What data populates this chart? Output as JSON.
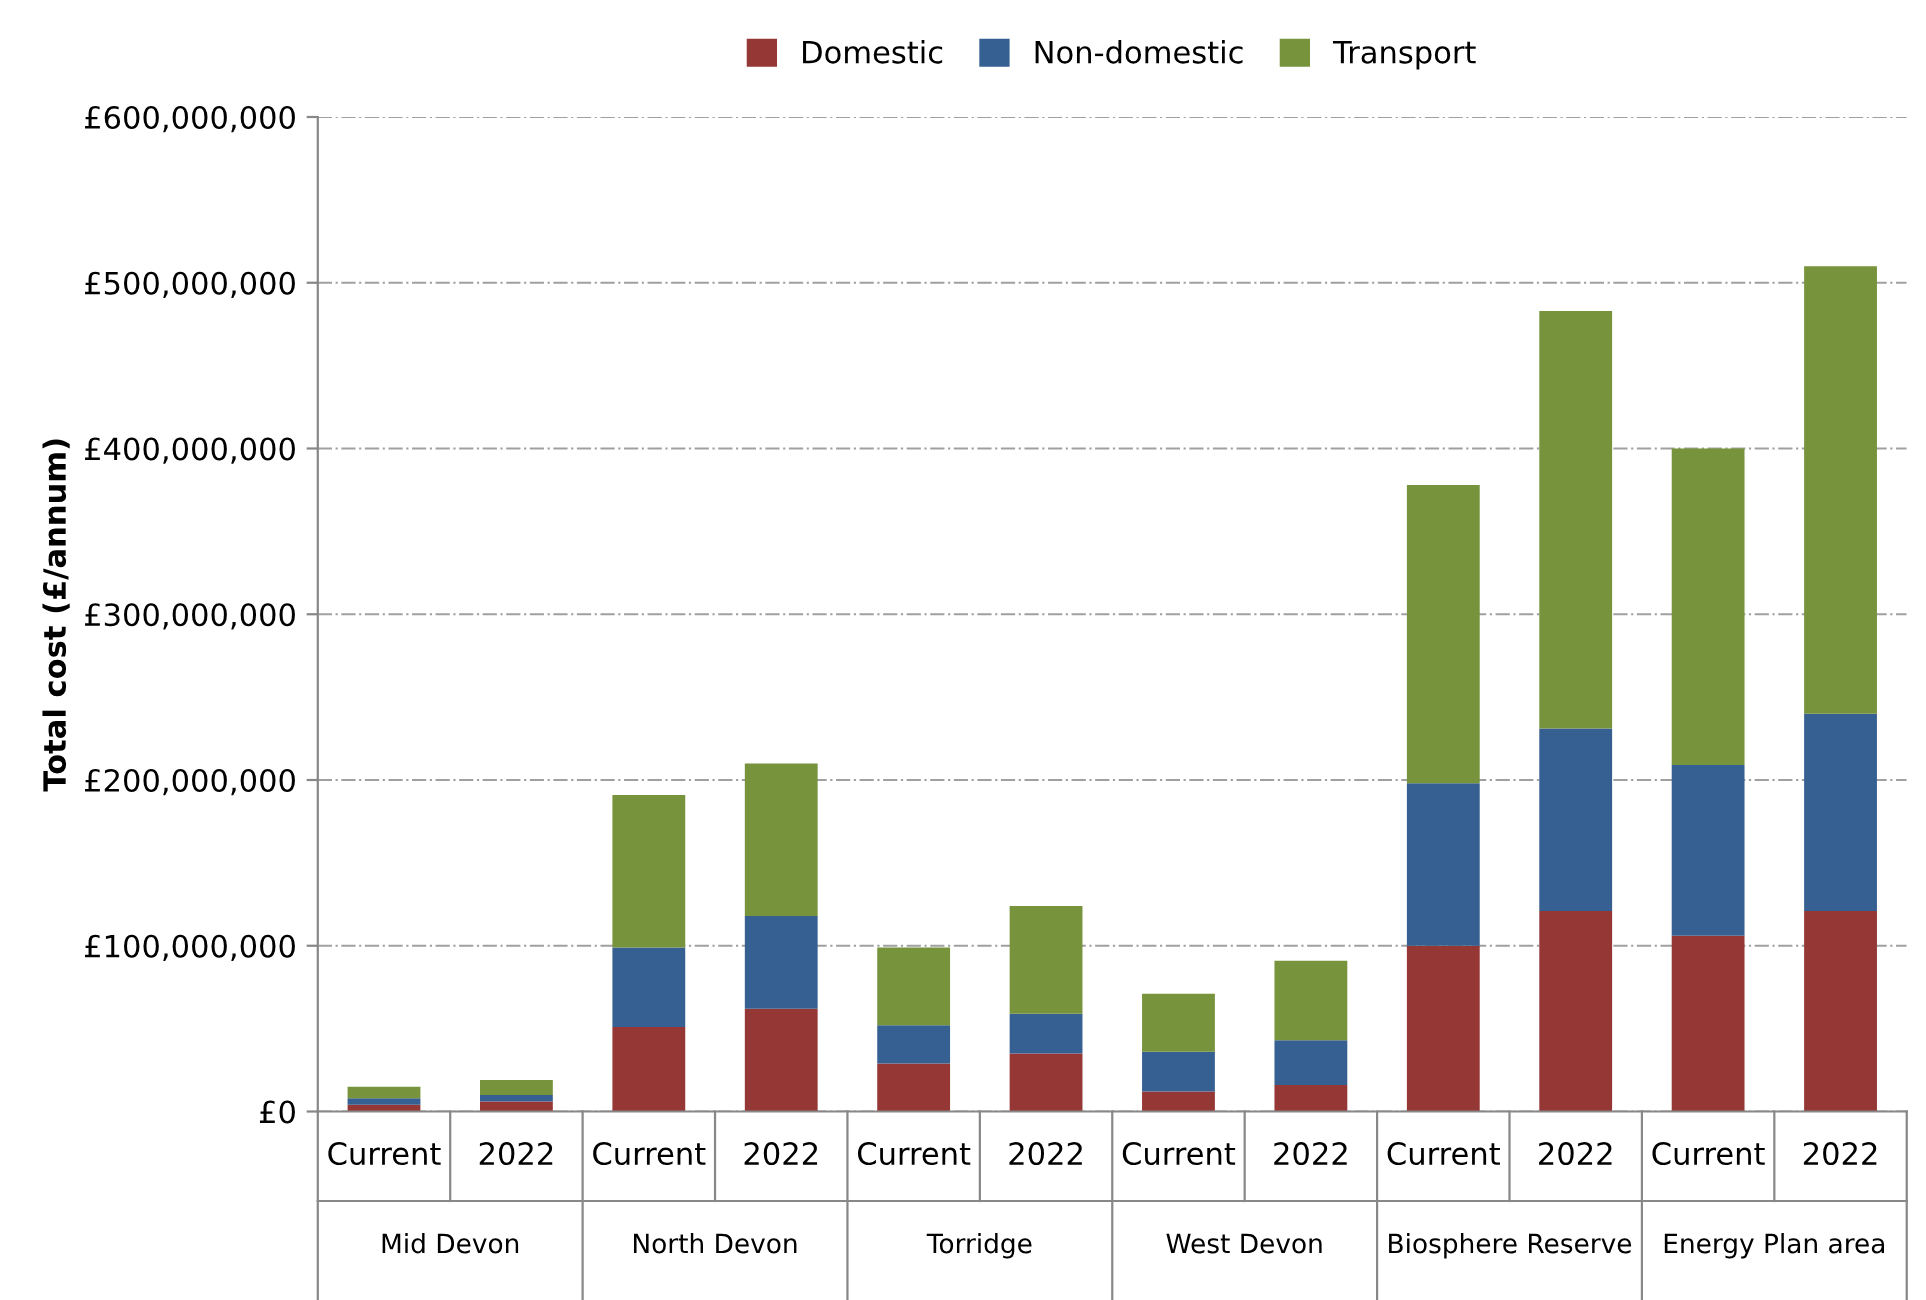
{
  "chart_data": {
    "type": "bar",
    "stacked": true,
    "ylabel": "Total cost (£/annum)",
    "categories": [
      "Current",
      "2022",
      "Current",
      "2022",
      "Current",
      "2022",
      "Current",
      "2022",
      "Current",
      "2022",
      "Current",
      "2022"
    ],
    "annotations": [
      "Mid Devon",
      "North Devon",
      "Torridge",
      "West Devon",
      "Biosphere Reserve",
      "Energy Plan area"
    ],
    "series": [
      {
        "name": "Domestic",
        "color": "#953735",
        "values": [
          4000000,
          6000000,
          51000000,
          62000000,
          29000000,
          35000000,
          12000000,
          16000000,
          100000000,
          121000000,
          106000000,
          121000000
        ]
      },
      {
        "name": "Non-domestic",
        "color": "#376092",
        "values": [
          4000000,
          4000000,
          48000000,
          56000000,
          23000000,
          24000000,
          24000000,
          27000000,
          98000000,
          110000000,
          103000000,
          119000000
        ]
      },
      {
        "name": "Transport",
        "color": "#77933c",
        "values": [
          7000000,
          9000000,
          92000000,
          92000000,
          47000000,
          65000000,
          35000000,
          48000000,
          180000000,
          252000000,
          191000000,
          270000000
        ]
      }
    ],
    "ylim": [
      0,
      600000000
    ],
    "yticks": [
      {
        "value": 0,
        "label": "£0"
      },
      {
        "value": 100000000,
        "label": "£100,000,000"
      },
      {
        "value": 200000000,
        "label": "£200,000,000"
      },
      {
        "value": 300000000,
        "label": "£300,000,000"
      },
      {
        "value": 400000000,
        "label": "£400,000,000"
      },
      {
        "value": 500000000,
        "label": "£500,000,000"
      },
      {
        "value": 600000000,
        "label": "£600,000,000"
      }
    ],
    "grid": "y",
    "legend": "top"
  }
}
